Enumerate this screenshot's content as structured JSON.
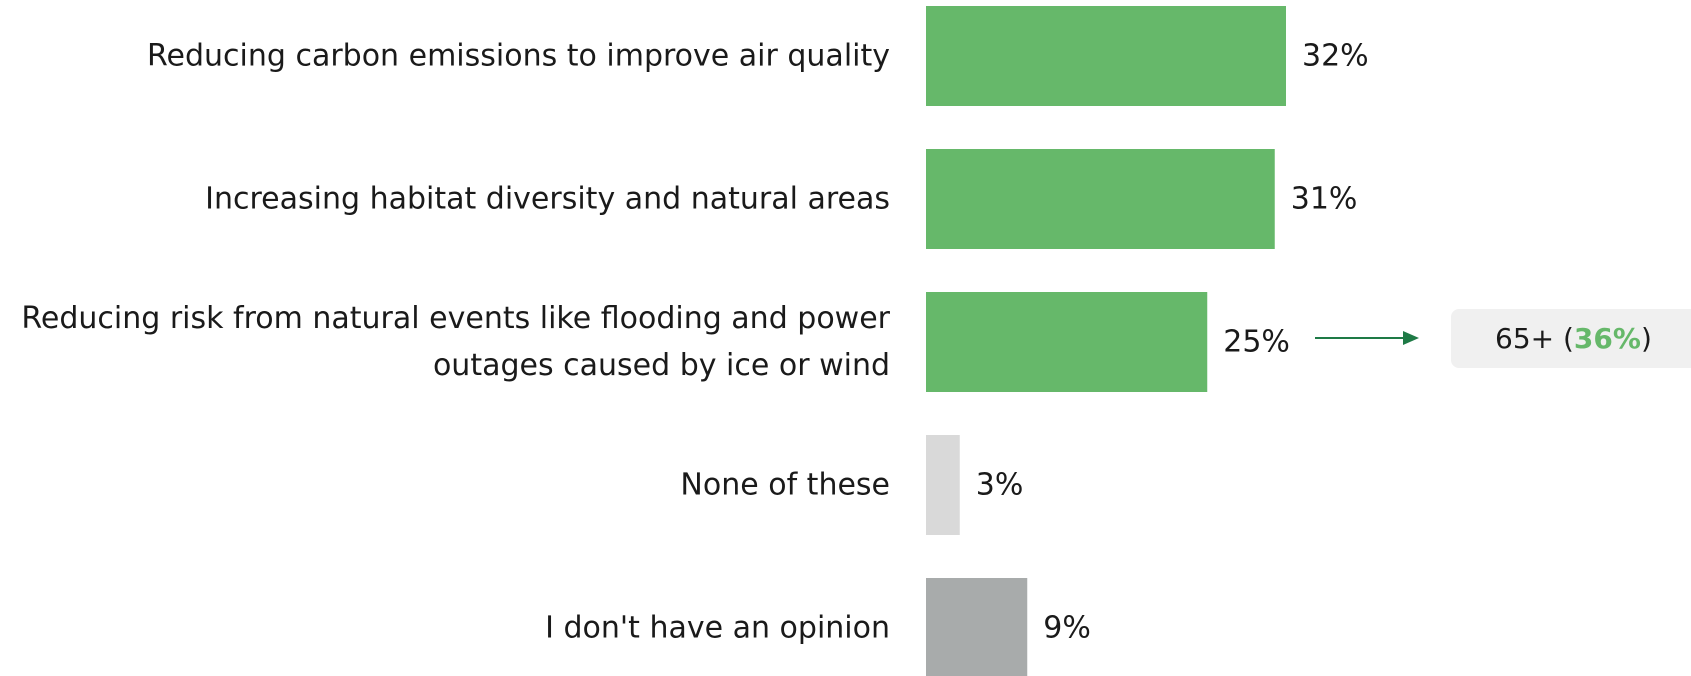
{
  "colors": {
    "highlight": "#66b86a",
    "none_of_these": "#d9d9d9",
    "no_opinion": "#a8abab",
    "arrow": "#1e7a46",
    "callout_highlight": "#66b86a"
  },
  "chart_data": {
    "type": "bar",
    "orientation": "horizontal",
    "categories": [
      "Reducing carbon emissions to improve air quality",
      "Increasing habitat diversity and natural areas",
      "Reducing risk from natural events like flooding and power outages caused by ice or wind",
      "None of these",
      "I don't have an opinion"
    ],
    "category_lines": [
      [
        "Reducing carbon emissions to improve air quality"
      ],
      [
        "Increasing habitat diversity and natural areas"
      ],
      [
        "Reducing risk from natural events like flooding and power",
        "outages caused by ice or wind"
      ],
      [
        "None of these"
      ],
      [
        "I don't have an opinion"
      ]
    ],
    "values": [
      32,
      31,
      25,
      3,
      9
    ],
    "value_labels": [
      "32%",
      "31%",
      "25%",
      "3%",
      "9%"
    ],
    "bar_colors": [
      "#66b86a",
      "#66b86a",
      "#66b86a",
      "#d9d9d9",
      "#a8abab"
    ],
    "title": "",
    "xlabel": "",
    "ylabel": "",
    "grid": false,
    "legend": false
  },
  "callout": {
    "prefix": "65+ (",
    "highlight": "36%",
    "suffix": ")"
  }
}
